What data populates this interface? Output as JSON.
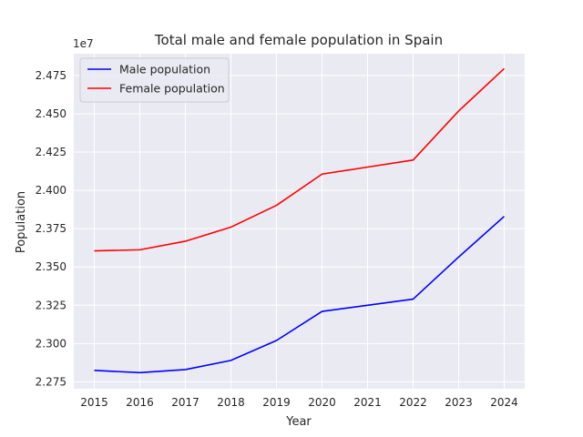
{
  "chart_data": {
    "type": "line",
    "title": "Total male and female population in Spain",
    "xlabel": "Year",
    "ylabel": "Population",
    "offset_text": "1e7",
    "x": [
      2015,
      2016,
      2017,
      2018,
      2019,
      2020,
      2021,
      2022,
      2023,
      2024
    ],
    "xticks": [
      "2015",
      "2016",
      "2017",
      "2018",
      "2019",
      "2020",
      "2021",
      "2022",
      "2023",
      "2024"
    ],
    "yticks": [
      2.275,
      2.3,
      2.325,
      2.35,
      2.375,
      2.4,
      2.425,
      2.45,
      2.475
    ],
    "ytick_labels": [
      "2.275",
      "2.300",
      "2.325",
      "2.350",
      "2.375",
      "2.400",
      "2.425",
      "2.450",
      "2.475"
    ],
    "xlim": [
      2014.55,
      2024.45
    ],
    "ylim": [
      2.2705,
      2.4892
    ],
    "grid": true,
    "legend_position": "top-left",
    "series": [
      {
        "name": "Male population",
        "color": "#0000ff",
        "values": [
          2.2825,
          2.281,
          2.283,
          2.289,
          2.302,
          2.321,
          2.325,
          2.329,
          2.3565,
          2.383
        ]
      },
      {
        "name": "Female population",
        "color": "#ff0000",
        "values": [
          2.3605,
          2.3612,
          2.3668,
          2.376,
          2.3902,
          2.4106,
          2.4152,
          2.4198,
          2.4518,
          2.4795
        ]
      }
    ]
  }
}
